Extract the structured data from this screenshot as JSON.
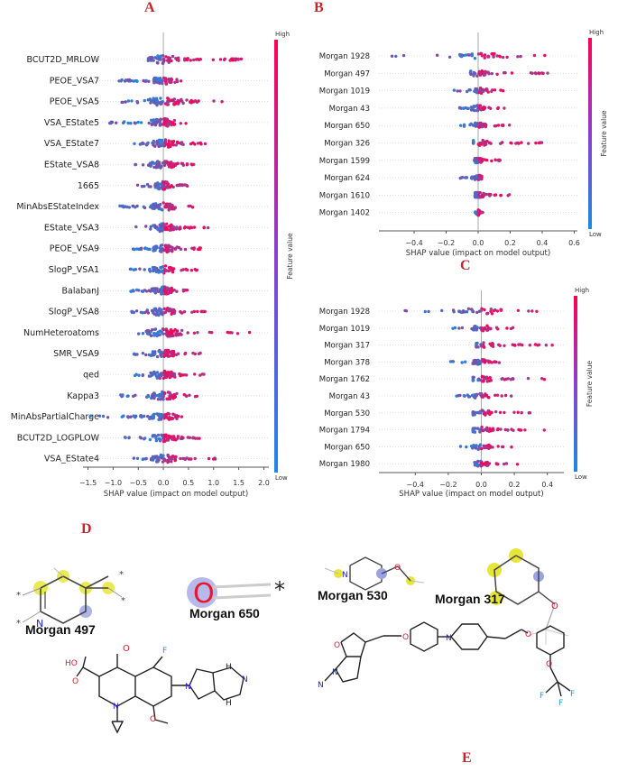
{
  "panels": {
    "a": "A",
    "b": "B",
    "c": "C",
    "d": "D",
    "e": "E"
  },
  "chart_data": [
    {
      "id": "A",
      "type": "scatter",
      "subtype": "shap-beeswarm",
      "xlabel": "SHAP value (impact on model output)",
      "xlim": [
        -1.6,
        2.1
      ],
      "xticks": [
        -1.5,
        -1.0,
        -0.5,
        0.0,
        0.5,
        1.0,
        1.5,
        2.0
      ],
      "xticklabels": [
        "−1.5",
        "−1.0",
        "−0.5",
        "0.0",
        "0.5",
        "1.0",
        "1.5",
        "2.0"
      ],
      "colorbar": {
        "high": "High",
        "low": "Low",
        "label": "Feature value",
        "colors": [
          "#1e88e5",
          "#ff0052"
        ]
      },
      "features": [
        {
          "name": "BCUT2D_MRLOW",
          "min": -0.35,
          "max": 1.6
        },
        {
          "name": "PEOE_VSA7",
          "min": -0.9,
          "max": 0.4
        },
        {
          "name": "PEOE_VSA5",
          "min": -0.85,
          "max": 1.3
        },
        {
          "name": "VSA_EState5",
          "min": -1.1,
          "max": 0.5
        },
        {
          "name": "VSA_EState7",
          "min": -0.6,
          "max": 0.85
        },
        {
          "name": "EState_VSA8",
          "min": -0.75,
          "max": 0.7
        },
        {
          "name": "1665",
          "min": -0.6,
          "max": 0.55
        },
        {
          "name": "MinAbsEStateIndex",
          "min": -0.95,
          "max": 0.65
        },
        {
          "name": "EState_VSA3",
          "min": -0.55,
          "max": 0.9
        },
        {
          "name": "PEOE_VSA9",
          "min": -0.6,
          "max": 0.75
        },
        {
          "name": "SlogP_VSA1",
          "min": -0.7,
          "max": 0.7
        },
        {
          "name": "BalabanJ",
          "min": -0.65,
          "max": 0.55
        },
        {
          "name": "SlogP_VSA8",
          "min": -0.7,
          "max": 0.85
        },
        {
          "name": "NumHeteroatoms",
          "min": -0.5,
          "max": 1.9
        },
        {
          "name": "SMR_VSA9",
          "min": -0.6,
          "max": 0.95
        },
        {
          "name": "qed",
          "min": -0.7,
          "max": 0.85
        },
        {
          "name": "Kappa3",
          "min": -0.85,
          "max": 0.8
        },
        {
          "name": "MinAbsPartialCharge",
          "min": -1.45,
          "max": 0.4
        },
        {
          "name": "BCUT2D_LOGPLOW",
          "min": -0.8,
          "max": 0.75
        },
        {
          "name": "VSA_EState4",
          "min": -0.6,
          "max": 1.1
        }
      ]
    },
    {
      "id": "B",
      "type": "scatter",
      "subtype": "shap-beeswarm",
      "xlabel": "SHAP value (impact on model output)",
      "xlim": [
        -0.62,
        0.62
      ],
      "xticks": [
        -0.4,
        -0.2,
        0.0,
        0.2,
        0.4,
        0.6
      ],
      "xticklabels": [
        "−0.4",
        "−0.2",
        "0.0",
        "0.2",
        "0.4",
        "0.6"
      ],
      "colorbar": {
        "high": "High",
        "low": "Low",
        "label": "Feature value",
        "colors": [
          "#1e88e5",
          "#ff0052"
        ]
      },
      "features": [
        {
          "name": "Morgan 1928",
          "min": -0.55,
          "max": 0.45
        },
        {
          "name": "Morgan 497",
          "min": -0.05,
          "max": 0.48
        },
        {
          "name": "Morgan 1019",
          "min": -0.18,
          "max": 0.2
        },
        {
          "name": "Morgan 43",
          "min": -0.12,
          "max": 0.18
        },
        {
          "name": "Morgan 650",
          "min": -0.14,
          "max": 0.2
        },
        {
          "name": "Morgan 326",
          "min": -0.03,
          "max": 0.55
        },
        {
          "name": "Morgan 1599",
          "min": -0.03,
          "max": 0.14
        },
        {
          "name": "Morgan 624",
          "min": -0.12,
          "max": 0.03
        },
        {
          "name": "Morgan 1610",
          "min": -0.02,
          "max": 0.24
        },
        {
          "name": "Morgan 1402",
          "min": -0.02,
          "max": 0.04
        }
      ]
    },
    {
      "id": "C",
      "type": "scatter",
      "subtype": "shap-beeswarm",
      "xlabel": "SHAP value (impact on model output)",
      "xlim": [
        -0.62,
        0.5
      ],
      "xticks": [
        -0.4,
        -0.2,
        0.0,
        0.2,
        0.4
      ],
      "xticklabels": [
        "−0.4",
        "−0.2",
        "0.0",
        "0.2",
        "0.4"
      ],
      "colorbar": {
        "high": "High",
        "low": "Low",
        "label": "Feature value",
        "colors": [
          "#1e88e5",
          "#ff0052"
        ]
      },
      "features": [
        {
          "name": "Morgan 1928",
          "min": -0.55,
          "max": 0.4
        },
        {
          "name": "Morgan 1019",
          "min": -0.2,
          "max": 0.2
        },
        {
          "name": "Morgan 317",
          "min": -0.03,
          "max": 0.43
        },
        {
          "name": "Morgan 378",
          "min": -0.2,
          "max": 0.12
        },
        {
          "name": "Morgan 1762",
          "min": -0.05,
          "max": 0.45
        },
        {
          "name": "Morgan 43",
          "min": -0.15,
          "max": 0.2
        },
        {
          "name": "Morgan 530",
          "min": -0.05,
          "max": 0.38
        },
        {
          "name": "Morgan 1794",
          "min": -0.05,
          "max": 0.44
        },
        {
          "name": "Morgan 650",
          "min": -0.13,
          "max": 0.2
        },
        {
          "name": "Morgan 1980",
          "min": -0.05,
          "max": 0.22
        }
      ]
    }
  ],
  "fragments": {
    "m497": "Morgan 497",
    "m650": "Morgan 650",
    "m530": "Morgan 530",
    "m317": "Morgan 317"
  },
  "atoms": {
    "O": "O",
    "star": "*",
    "N": "N",
    "HO": "HO",
    "H": "H",
    "NH": "N",
    "F": "F"
  }
}
